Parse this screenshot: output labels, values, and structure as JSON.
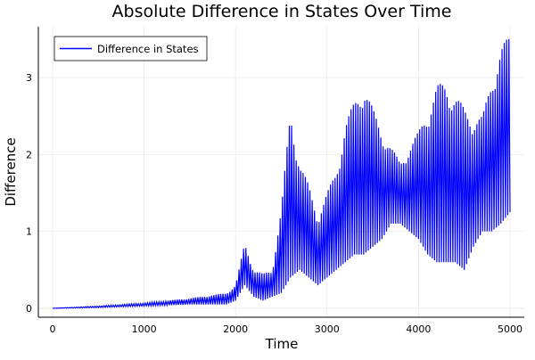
{
  "chart_data": {
    "type": "line",
    "title": "Absolute Difference in States Over Time",
    "xlabel": "Time",
    "ylabel": "Difference",
    "xlim": [
      -150,
      5150
    ],
    "ylim": [
      -0.1,
      3.65
    ],
    "xticks": [
      0,
      1000,
      2000,
      3000,
      4000,
      5000
    ],
    "yticks": [
      0,
      1,
      2,
      3
    ],
    "grid": true,
    "legend_position": "top-left",
    "series": [
      {
        "name": "Difference in States",
        "color": "#0000ff",
        "oscillation_period": 25,
        "envelope": {
          "x": [
            0,
            500,
            1000,
            1500,
            1900,
            2000,
            2100,
            2200,
            2300,
            2400,
            2500,
            2600,
            2700,
            2800,
            2900,
            3000,
            3100,
            3200,
            3300,
            3400,
            3500,
            3600,
            3700,
            3800,
            3900,
            4000,
            4100,
            4200,
            4300,
            4400,
            4500,
            4600,
            4700,
            4800,
            4900,
            5000
          ],
          "low": [
            0,
            0.01,
            0.03,
            0.05,
            0.05,
            0.1,
            0.3,
            0.15,
            0.1,
            0.15,
            0.2,
            0.4,
            0.5,
            0.4,
            0.3,
            0.4,
            0.5,
            0.6,
            0.7,
            0.7,
            0.8,
            0.9,
            1.1,
            1.1,
            1.0,
            0.9,
            0.7,
            0.6,
            0.6,
            0.6,
            0.5,
            0.8,
            1.0,
            1.0,
            1.1,
            1.25
          ],
          "high": [
            0,
            0.03,
            0.07,
            0.13,
            0.2,
            0.3,
            0.85,
            0.5,
            0.45,
            0.5,
            1.3,
            2.6,
            1.9,
            1.6,
            1.2,
            1.5,
            1.8,
            2.4,
            2.7,
            2.95,
            2.6,
            2.3,
            2.1,
            1.9,
            2.1,
            2.3,
            2.6,
            2.9,
            2.95,
            2.8,
            2.6,
            2.5,
            2.5,
            3.0,
            3.4,
            3.55
          ]
        }
      }
    ]
  }
}
